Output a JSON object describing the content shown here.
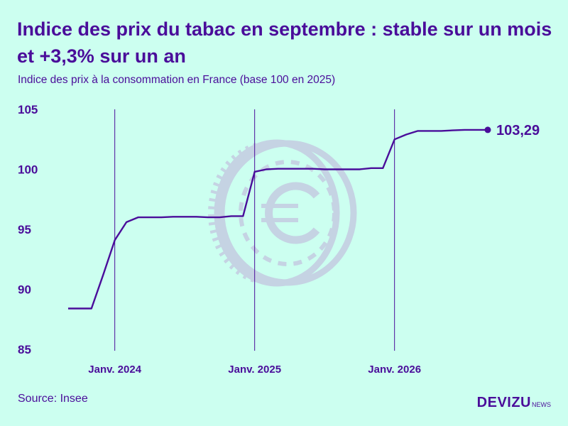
{
  "header": {
    "title": "Indice des prix du tabac en septembre : stable sur un mois et +3,3% sur un an",
    "subtitle": "Indice des prix à la consommation en France (base 100 en 2025)"
  },
  "footer": {
    "source": "Source: Insee",
    "brand_main": "DEVIZU",
    "brand_suffix": "NEWS"
  },
  "colors": {
    "background": "#ccfff0",
    "accent": "#4a0d9a",
    "coin": "#c5d3e3"
  },
  "chart_data": {
    "type": "line",
    "title": "Indice des prix du tabac en septembre : stable sur un mois et +3,3% sur un an",
    "subtitle": "Indice des prix à la consommation en France (base 100 en 2025)",
    "xlabel": "",
    "ylabel": "",
    "x_range": [
      "2023-09",
      "2026-09"
    ],
    "ylim": [
      85,
      105
    ],
    "y_ticks": [
      85,
      90,
      95,
      100,
      105
    ],
    "x_ticks": [
      {
        "date": "2024-01",
        "label": "Janv. 2024"
      },
      {
        "date": "2025-01",
        "label": "Janv. 2025"
      },
      {
        "date": "2026-01",
        "label": "Janv. 2026"
      }
    ],
    "grid": "vertical lines at January",
    "end_label": "103,29",
    "series": [
      {
        "x": [
          "2023-09",
          "2023-10",
          "2023-11",
          "2023-12",
          "2024-01",
          "2024-02",
          "2024-03",
          "2024-04",
          "2024-05",
          "2024-06",
          "2024-07",
          "2024-08",
          "2024-09",
          "2024-10",
          "2024-11",
          "2024-12",
          "2025-01",
          "2025-02",
          "2025-03",
          "2025-04",
          "2025-05",
          "2025-06",
          "2025-07",
          "2025-08",
          "2025-09",
          "2025-10",
          "2025-11",
          "2025-12",
          "2026-01",
          "2026-02",
          "2026-03",
          "2026-04",
          "2026-05",
          "2026-06",
          "2026-07",
          "2026-08",
          "2026-09"
        ],
        "values": [
          88.4,
          88.4,
          88.4,
          91.2,
          94.1,
          95.6,
          96.0,
          96.0,
          96.0,
          96.05,
          96.05,
          96.05,
          96.0,
          96.0,
          96.1,
          96.1,
          99.8,
          100.0,
          100.05,
          100.05,
          100.05,
          100.05,
          100.0,
          100.0,
          100.0,
          100.0,
          100.1,
          100.1,
          102.5,
          102.9,
          103.2,
          103.2,
          103.2,
          103.25,
          103.29,
          103.29,
          103.29
        ]
      }
    ]
  }
}
